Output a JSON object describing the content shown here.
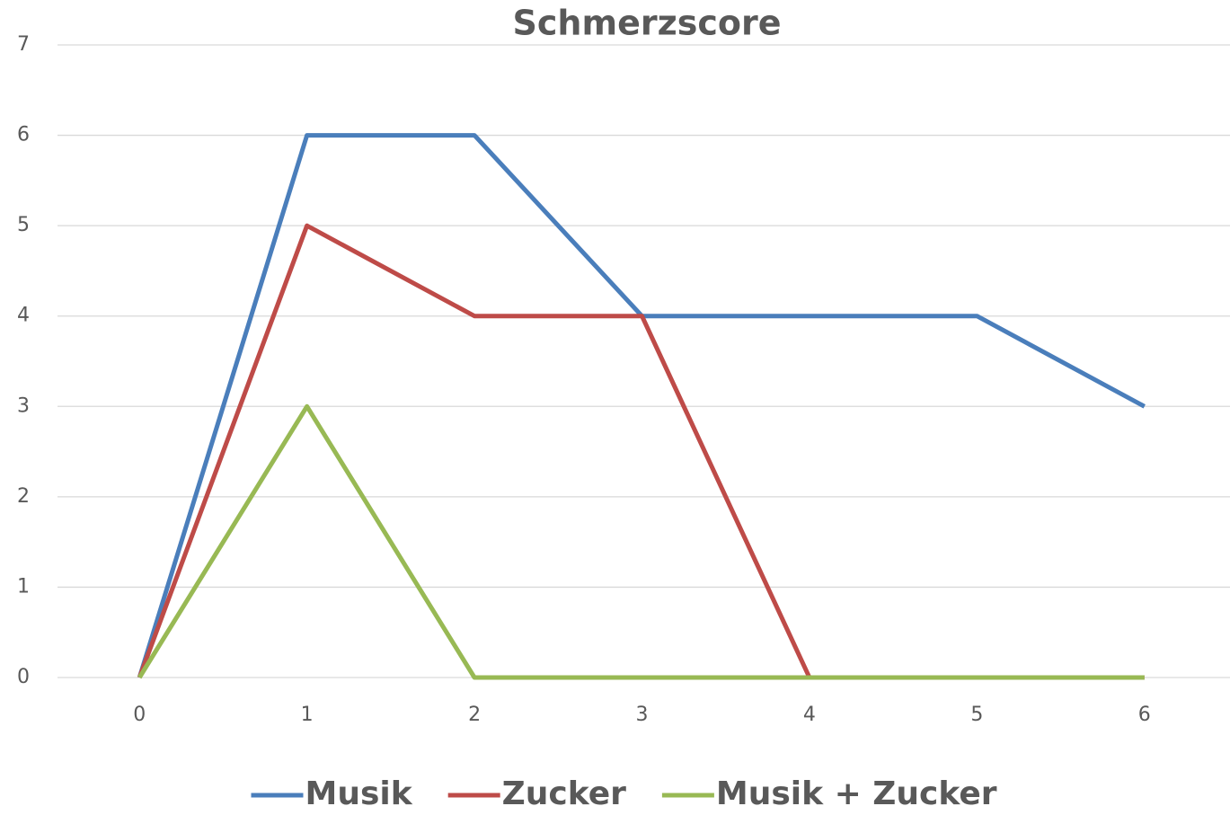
{
  "chart_data": {
    "type": "line",
    "title": "Schmerzscore",
    "categories": [
      "0",
      "1",
      "2",
      "3",
      "4",
      "5",
      "6"
    ],
    "series": [
      {
        "name": "Musik",
        "color": "#4a7ebb",
        "values": [
          0,
          6,
          6,
          4,
          4,
          4,
          3
        ]
      },
      {
        "name": "Zucker",
        "color": "#be4b48",
        "values": [
          0,
          5,
          4,
          4,
          0,
          0,
          0
        ]
      },
      {
        "name": "Musik + Zucker",
        "color": "#98b954",
        "values": [
          0,
          3,
          0,
          0,
          0,
          0,
          0
        ]
      }
    ],
    "ylim": [
      0,
      7
    ],
    "yticks": [
      0,
      1,
      2,
      3,
      4,
      5,
      6,
      7
    ],
    "grid": true,
    "legend": "bottom"
  }
}
